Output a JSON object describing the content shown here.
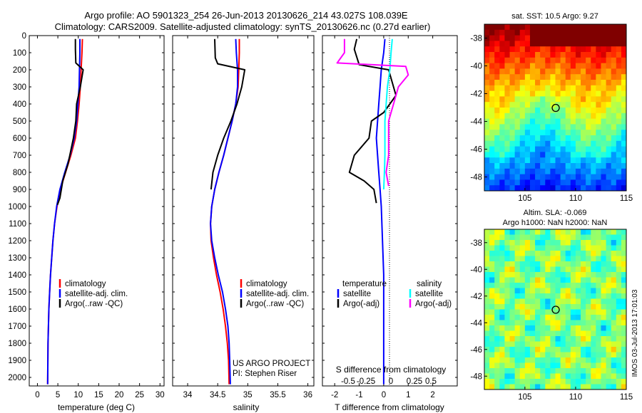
{
  "header": {
    "line1": "Argo profile: AO 5901323_254 26-Jun-2013 20130626_214 43.027S 108.039E",
    "line2": "Climatology: CARS2009. Satellite-adjusted climatology: synTS_20130626.nc (0.27d earlier)"
  },
  "colors": {
    "climatology": "#ff0000",
    "satellite": "#0000ff",
    "argo": "#000000",
    "salinity_satellite": "#00ffff",
    "salinity_argo": "#ff00ff"
  },
  "panels": {
    "temperature": {
      "xlabel": "temperature (deg C)",
      "legend": [
        "climatology",
        "satellite-adj. clim.",
        "Argo(..raw -QC)"
      ]
    },
    "salinity": {
      "xlabel": "salinity",
      "legend": [
        "climatology",
        "satellite-adj. clim.",
        "Argo(..raw -QC)"
      ],
      "credit1": "US ARGO PROJECT",
      "credit2": "PI: Stephen Riser"
    },
    "difference": {
      "xlabel": "T difference from climatology",
      "top_label": "S difference from climatology",
      "legend_titles": [
        "temperature",
        "salinity"
      ],
      "legend_temperature": [
        "satellite",
        "Argo(-adj)"
      ],
      "legend_salinity": [
        "satellite",
        "Argo(-adj)"
      ]
    },
    "sst_map": {
      "title": "sat. SST: 10.5 Argo: 9.27"
    },
    "sla_map": {
      "title1": "Altim. SLA: -0.069",
      "title2": "Argo h1000: NaN h2000: NaN"
    }
  },
  "timestamp": "IMOS 03-Jul-2013 17:01:03",
  "chart_data": [
    {
      "type": "line",
      "xlabel": "temperature (deg C)",
      "ylabel": "",
      "xlim": [
        -2,
        31
      ],
      "ylim": [
        2050,
        0
      ],
      "xticks": [
        0,
        5,
        10,
        15,
        20,
        25,
        30
      ],
      "yticks": [
        0,
        100,
        200,
        300,
        400,
        500,
        600,
        700,
        800,
        900,
        1000,
        1100,
        1200,
        1300,
        1400,
        1500,
        1600,
        1700,
        1800,
        1900,
        2000
      ],
      "series": [
        {
          "name": "climatology",
          "color": "#ff0000",
          "x": [
            11.0,
            10.9,
            10.7,
            10.5,
            10.2,
            9.8,
            9.3,
            8.2,
            6.9,
            5.6,
            4.8,
            4.2,
            3.8,
            3.5,
            3.2,
            3.0,
            2.8,
            2.7,
            2.6,
            2.55,
            2.5
          ],
          "y": [
            20,
            100,
            200,
            300,
            400,
            500,
            600,
            700,
            800,
            900,
            1000,
            1100,
            1200,
            1300,
            1400,
            1500,
            1600,
            1700,
            1800,
            1900,
            2040
          ]
        },
        {
          "name": "satellite-adj. clim.",
          "color": "#0000ff",
          "x": [
            10.4,
            10.4,
            10.3,
            10.2,
            9.9,
            9.6,
            9.0,
            8.0,
            6.7,
            5.5,
            4.7,
            4.2,
            3.8,
            3.5,
            3.2,
            3.0,
            2.8,
            2.7,
            2.6,
            2.55,
            2.5
          ],
          "y": [
            20,
            100,
            200,
            300,
            400,
            500,
            600,
            700,
            800,
            900,
            1000,
            1100,
            1200,
            1300,
            1400,
            1500,
            1600,
            1700,
            1800,
            1900,
            2040
          ]
        },
        {
          "name": "Argo(..raw -QC)",
          "color": "#000000",
          "x": [
            9.3,
            9.3,
            9.4,
            11.2,
            10.5,
            9.6,
            9.4,
            8.8,
            7.5,
            6.2,
            5.5,
            4.9
          ],
          "y": [
            20,
            80,
            160,
            200,
            300,
            400,
            500,
            600,
            750,
            850,
            950,
            990
          ]
        }
      ]
    },
    {
      "type": "line",
      "xlabel": "salinity",
      "ylabel": "",
      "xlim": [
        33.75,
        36.1
      ],
      "ylim": [
        2050,
        0
      ],
      "xticks": [
        34,
        34.5,
        35,
        35.5,
        36
      ],
      "series": [
        {
          "name": "climatology",
          "color": "#ff0000",
          "x": [
            34.86,
            34.86,
            34.85,
            34.84,
            34.8,
            34.74,
            34.67,
            34.6,
            34.52,
            34.45,
            34.4,
            34.38,
            34.39,
            34.43,
            34.48,
            34.54,
            34.59,
            34.63,
            34.66,
            34.68,
            34.69
          ],
          "y": [
            20,
            100,
            200,
            300,
            400,
            500,
            600,
            700,
            800,
            900,
            1000,
            1100,
            1200,
            1300,
            1400,
            1500,
            1600,
            1700,
            1800,
            1900,
            2040
          ]
        },
        {
          "name": "satellite-adj. clim.",
          "color": "#0000ff",
          "x": [
            34.8,
            34.81,
            34.83,
            34.83,
            34.8,
            34.74,
            34.67,
            34.6,
            34.52,
            34.45,
            34.4,
            34.38,
            34.4,
            34.45,
            34.51,
            34.58,
            34.63,
            34.67,
            34.69,
            34.7,
            34.71
          ],
          "y": [
            20,
            100,
            200,
            300,
            400,
            500,
            600,
            700,
            800,
            900,
            1000,
            1100,
            1200,
            1300,
            1400,
            1500,
            1600,
            1700,
            1800,
            1900,
            2040
          ]
        },
        {
          "name": "Argo(..raw -QC)",
          "color": "#000000",
          "x": [
            34.45,
            34.46,
            34.5,
            34.95,
            34.9,
            34.82,
            34.72,
            34.6,
            34.5,
            34.42,
            34.39
          ],
          "y": [
            20,
            130,
            165,
            200,
            300,
            400,
            500,
            600,
            700,
            800,
            900
          ]
        }
      ]
    },
    {
      "type": "line",
      "xlabel": "T difference from climatology",
      "top_label": "S difference from climatology",
      "xlim": [
        -2.5,
        3.0
      ],
      "ylim": [
        2050,
        0
      ],
      "xticks": [
        -2,
        -1,
        0,
        1,
        2
      ],
      "top_ticks": [
        "-0.5",
        "-0.25",
        "0",
        "0.25",
        "0.5"
      ],
      "series": [
        {
          "name": "temperature satellite",
          "color": "#0000ff",
          "x": [
            0.05,
            0.0,
            -0.1,
            -0.15,
            -0.2,
            -0.25,
            -0.3,
            -0.25,
            -0.2,
            -0.15,
            -0.1,
            -0.05,
            0.0,
            0.0,
            0.0,
            0.0
          ],
          "y": [
            20,
            100,
            200,
            300,
            400,
            500,
            600,
            700,
            800,
            900,
            1000,
            1200,
            1400,
            1600,
            1800,
            2040
          ]
        },
        {
          "name": "temperature Argo(-adj)",
          "color": "#000000",
          "x": [
            -1.1,
            -1.2,
            -1.0,
            0.2,
            0.5,
            0.0,
            -0.5,
            -0.6,
            -1.2,
            -1.4,
            -0.8,
            -0.4,
            -0.3
          ],
          "y": [
            20,
            80,
            170,
            200,
            350,
            450,
            500,
            600,
            700,
            800,
            850,
            900,
            980
          ]
        },
        {
          "name": "salinity satellite",
          "color": "#00ffff",
          "x": [
            0.35,
            0.3,
            0.25,
            0.15,
            0.05,
            0.05,
            0.03,
            0.0
          ],
          "y": [
            20,
            100,
            200,
            300,
            500,
            700,
            800,
            900
          ]
        },
        {
          "name": "salinity Argo(-adj)",
          "color": "#ff00ff",
          "x": [
            -1.6,
            -1.6,
            -1.9,
            0.9,
            1.0,
            0.6,
            0.4,
            0.2,
            0.2,
            0.1,
            0.2
          ],
          "y": [
            20,
            100,
            160,
            180,
            230,
            300,
            400,
            500,
            700,
            800,
            880
          ]
        }
      ]
    },
    {
      "type": "heatmap",
      "title": "sat. SST: 10.5 Argo: 9.27",
      "xlim": [
        101,
        115
      ],
      "ylim": [
        -49,
        -37
      ],
      "xticks": [
        105,
        110,
        115
      ],
      "yticks": [
        -38,
        -40,
        -42,
        -44,
        -46,
        -48
      ],
      "marker": {
        "x": 108.039,
        "y": -43.027
      }
    },
    {
      "type": "heatmap",
      "title": "Altim. SLA: -0.069",
      "subtitle": "Argo h1000: NaN h2000: NaN",
      "xlim": [
        101,
        115
      ],
      "ylim": [
        -49,
        -37
      ],
      "xticks": [
        105,
        110,
        115
      ],
      "yticks": [
        -38,
        -40,
        -42,
        -44,
        -46,
        -48
      ],
      "marker": {
        "x": 108.039,
        "y": -43.027
      }
    }
  ]
}
